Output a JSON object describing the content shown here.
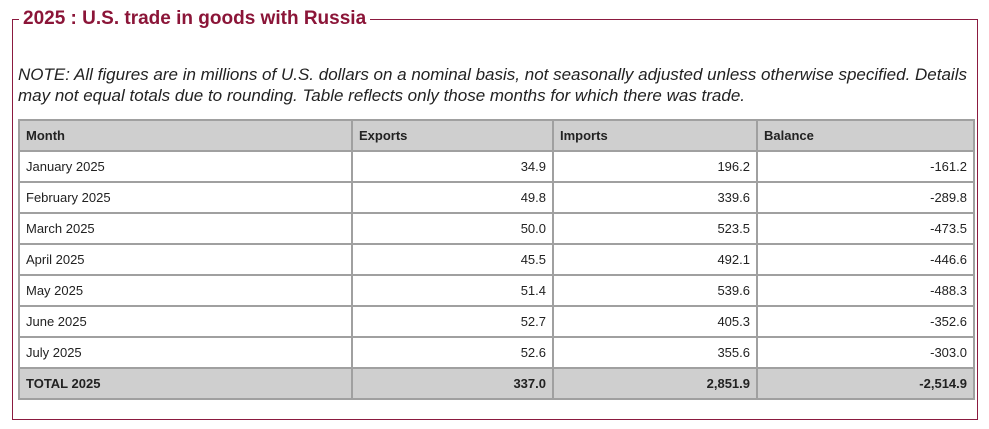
{
  "title": "2025 : U.S. trade in goods with Russia",
  "note": "NOTE: All figures are in millions of U.S. dollars on a nominal basis, not seasonally adjusted unless otherwise specified. Details may not equal totals due to rounding. Table reflects only those months for which there was trade.",
  "table": {
    "header": [
      "Month",
      "Exports",
      "Imports",
      "Balance"
    ],
    "rows": [
      [
        "January 2025",
        "34.9",
        "196.2",
        "-161.2"
      ],
      [
        "February 2025",
        "49.8",
        "339.6",
        "-289.8"
      ],
      [
        "March 2025",
        "50.0",
        "523.5",
        "-473.5"
      ],
      [
        "April 2025",
        "45.5",
        "492.1",
        "-446.6"
      ],
      [
        "May 2025",
        "51.4",
        "539.6",
        "-488.3"
      ],
      [
        "June 2025",
        "52.7",
        "405.3",
        "-352.6"
      ],
      [
        "July 2025",
        "52.6",
        "355.6",
        "-303.0"
      ]
    ],
    "total": [
      "TOTAL 2025",
      "337.0",
      "2,851.9",
      "-2,514.9"
    ]
  }
}
